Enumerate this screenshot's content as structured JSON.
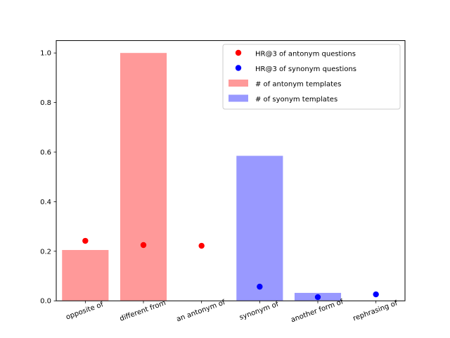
{
  "chart_data": {
    "type": "bar",
    "categories": [
      "opposite of",
      "different from",
      "an antonym of",
      "synonym of",
      "another form of",
      "rephrasing of"
    ],
    "ylim": [
      0,
      1.05
    ],
    "yticks": [
      0.0,
      0.2,
      0.4,
      0.6,
      0.8,
      1.0
    ],
    "ytick_labels": [
      "0.0",
      "0.2",
      "0.4",
      "0.6",
      "0.8",
      "1.0"
    ],
    "xtick_rotation_deg": -20,
    "grid": false,
    "legend_position": "top-right",
    "series": [
      {
        "name": "# of antonym templates",
        "mark": "bar",
        "color": "#ff9999",
        "values": [
          0.205,
          1.0,
          0,
          0,
          0,
          0
        ]
      },
      {
        "name": "# of syonym templates",
        "mark": "bar",
        "color": "#9999ff",
        "values": [
          0,
          0,
          0,
          0.585,
          0.032,
          0
        ]
      },
      {
        "name": "HR@3 of antonym questions",
        "mark": "point",
        "color": "#ff0000",
        "points": [
          {
            "category": "opposite of",
            "value": 0.242
          },
          {
            "category": "different from",
            "value": 0.225
          },
          {
            "category": "an antonym of",
            "value": 0.222
          }
        ]
      },
      {
        "name": "HR@3 of synonym questions",
        "mark": "point",
        "color": "#0000ff",
        "points": [
          {
            "category": "synonym of",
            "value": 0.057
          },
          {
            "category": "another form of",
            "value": 0.015
          },
          {
            "category": "rephrasing of",
            "value": 0.026
          }
        ]
      }
    ],
    "legend": [
      {
        "label": "HR@3 of antonym questions",
        "kind": "point",
        "color": "#ff0000"
      },
      {
        "label": "HR@3 of synonym questions",
        "kind": "point",
        "color": "#0000ff"
      },
      {
        "label": "# of antonym templates",
        "kind": "bar",
        "color": "#ff9999"
      },
      {
        "label": "# of syonym templates",
        "kind": "bar",
        "color": "#9999ff"
      }
    ]
  }
}
